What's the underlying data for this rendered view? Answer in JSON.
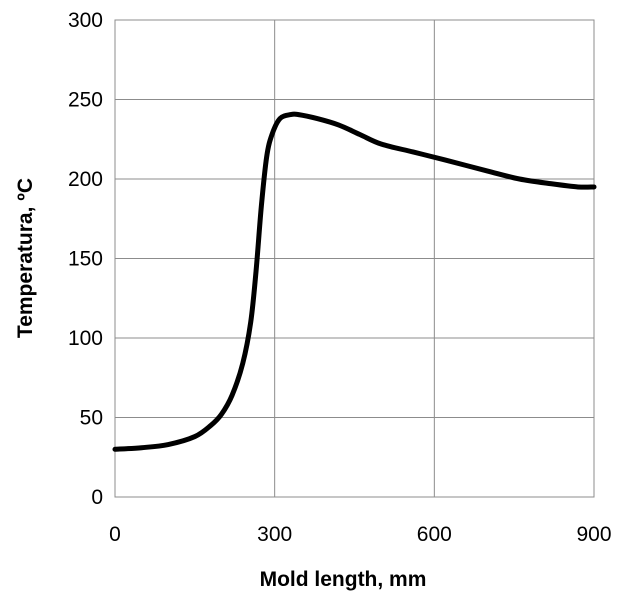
{
  "chart_data": {
    "type": "line",
    "title": "",
    "xlabel": "Mold length, mm",
    "ylabel": "Temperatura, ºC",
    "xlim": [
      0,
      900
    ],
    "ylim": [
      0,
      300
    ],
    "xticks": [
      0,
      300,
      600,
      900
    ],
    "yticks": [
      0,
      50,
      100,
      150,
      200,
      250,
      300
    ],
    "grid": true,
    "legend": "none",
    "series": [
      {
        "color": "#000000",
        "x": [
          0,
          50,
          100,
          150,
          180,
          200,
          220,
          240,
          255,
          265,
          275,
          285,
          295,
          310,
          330,
          345,
          380,
          420,
          460,
          500,
          560,
          620,
          700,
          760,
          820,
          870,
          900
        ],
        "y": [
          30,
          31,
          33,
          38,
          45,
          52,
          64,
          84,
          110,
          142,
          183,
          214,
          228,
          238,
          240.5,
          240.5,
          238,
          234,
          228,
          222,
          217,
          212,
          205,
          200,
          197,
          195,
          195
        ]
      }
    ]
  }
}
